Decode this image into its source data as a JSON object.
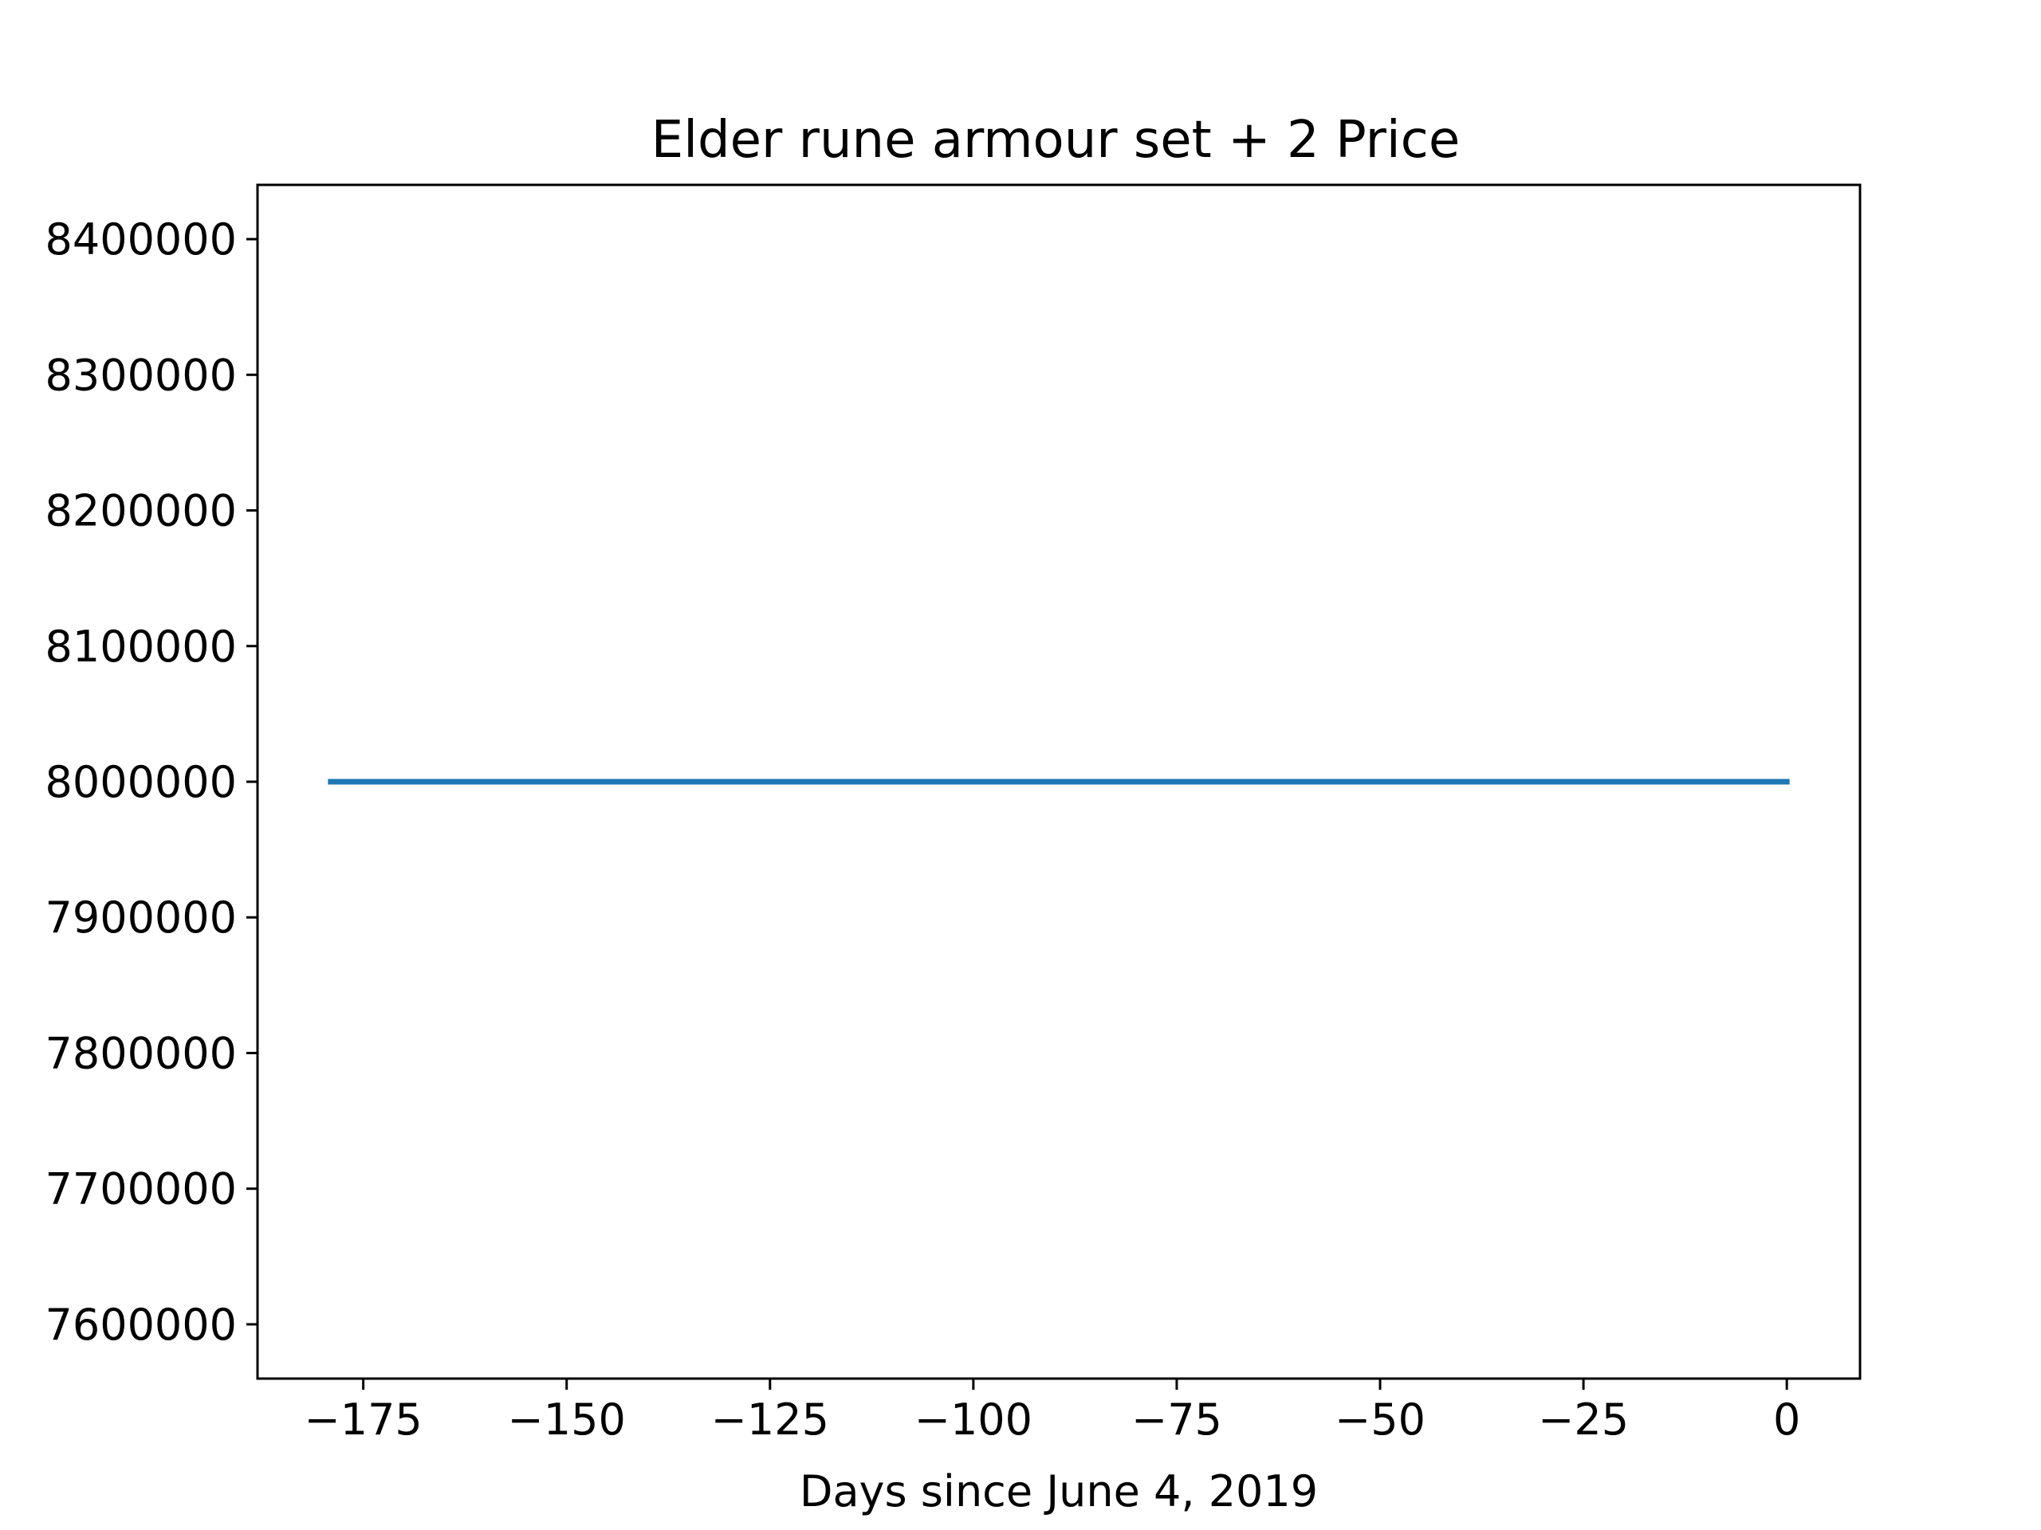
{
  "chart_data": {
    "type": "line",
    "title": "Elder rune armour set + 2 Price",
    "xlabel": "Days since June 4, 2019",
    "ylabel": "",
    "xlim": [
      -188,
      9
    ],
    "ylim": [
      7560000,
      8440000
    ],
    "x_ticks": [
      -175,
      -150,
      -125,
      -100,
      -75,
      -50,
      -25,
      0
    ],
    "x_tick_labels": [
      "−175",
      "−150",
      "−125",
      "−100",
      "−75",
      "−50",
      "−25",
      "0"
    ],
    "y_ticks": [
      7600000,
      7700000,
      7800000,
      7900000,
      8000000,
      8100000,
      8200000,
      8300000,
      8400000
    ],
    "y_tick_labels": [
      "7600000",
      "7700000",
      "7800000",
      "7900000",
      "8000000",
      "8100000",
      "8200000",
      "8300000",
      "8400000"
    ],
    "grid": false,
    "series": [
      {
        "color": "#1f77b4",
        "x": [
          -179,
          0
        ],
        "y": [
          8000000,
          8000000
        ]
      }
    ]
  }
}
